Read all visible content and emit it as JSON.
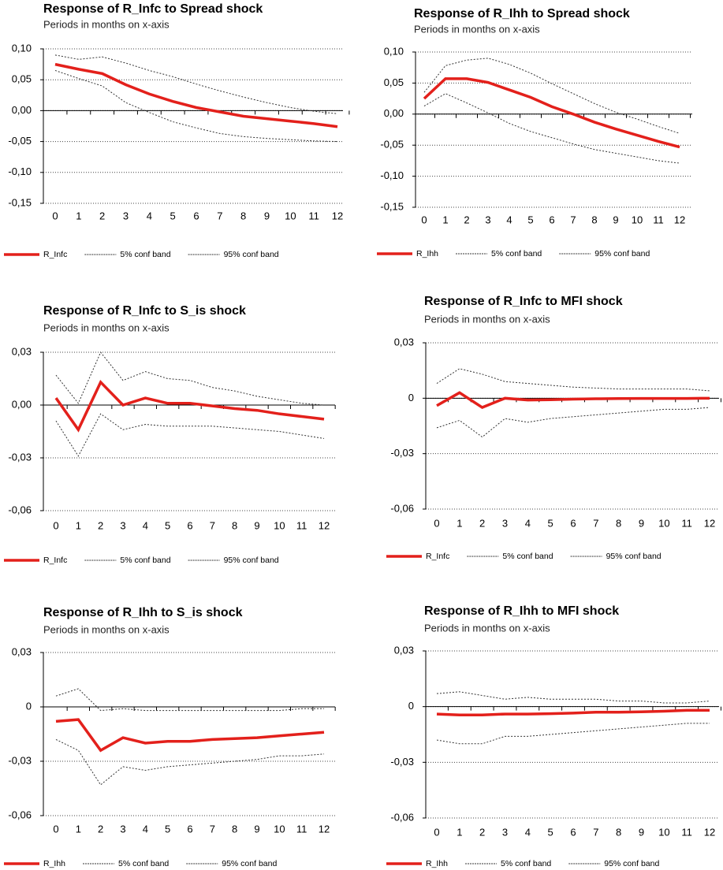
{
  "chart_data": [
    {
      "type": "line",
      "title": "Response of R_Infc to Spread shock",
      "subtitle": "Periods in months on x-axis",
      "x": [
        0,
        1,
        2,
        3,
        4,
        5,
        6,
        7,
        8,
        9,
        10,
        11,
        12
      ],
      "xlim": [
        0,
        12
      ],
      "xticks": [
        0,
        1,
        2,
        3,
        4,
        5,
        6,
        7,
        8,
        9,
        10,
        11,
        12
      ],
      "ylim": [
        -0.15,
        0.1
      ],
      "yticks": [
        {
          "value": -0.15,
          "label": "-0,15"
        },
        {
          "value": -0.1,
          "label": "-0,10"
        },
        {
          "value": -0.05,
          "label": "-0,05"
        },
        {
          "value": 0,
          "label": "0,00"
        },
        {
          "value": 0.05,
          "label": "0,05"
        },
        {
          "value": 0.1,
          "label": "0,10"
        }
      ],
      "grid": true,
      "legend": "bottom",
      "series": [
        {
          "name": "R_Infc",
          "color": "#e3201b",
          "line_style": "solid",
          "values": [
            0.075,
            0.067,
            0.06,
            0.042,
            0.027,
            0.015,
            0.005,
            -0.002,
            -0.009,
            -0.013,
            -0.017,
            -0.021,
            -0.026
          ]
        },
        {
          "name": "5% conf band",
          "color": "#333333",
          "line_style": "dotted",
          "values": [
            0.065,
            0.052,
            0.04,
            0.013,
            -0.003,
            -0.018,
            -0.028,
            -0.037,
            -0.042,
            -0.045,
            -0.047,
            -0.049,
            -0.05
          ]
        },
        {
          "name": "95% conf band",
          "color": "#333333",
          "line_style": "dotted",
          "values": [
            0.09,
            0.083,
            0.087,
            0.077,
            0.065,
            0.055,
            0.043,
            0.032,
            0.022,
            0.013,
            0.005,
            -0.001,
            -0.005
          ]
        }
      ]
    },
    {
      "type": "line",
      "title": "Response of R_Ihh to Spread shock",
      "subtitle": "Periods in months on x-axis",
      "x": [
        0,
        1,
        2,
        3,
        4,
        5,
        6,
        7,
        8,
        9,
        10,
        11,
        12
      ],
      "xlim": [
        0,
        12
      ],
      "xticks": [
        0,
        1,
        2,
        3,
        4,
        5,
        6,
        7,
        8,
        9,
        10,
        11,
        12
      ],
      "ylim": [
        -0.15,
        0.1
      ],
      "yticks": [
        {
          "value": -0.15,
          "label": "-0,15"
        },
        {
          "value": -0.1,
          "label": "-0,10"
        },
        {
          "value": -0.05,
          "label": "-0,05"
        },
        {
          "value": 0,
          "label": "0,00"
        },
        {
          "value": 0.05,
          "label": "0,05"
        },
        {
          "value": 0.1,
          "label": "0,10"
        }
      ],
      "grid": true,
      "legend": "bottom",
      "series": [
        {
          "name": "R_Ihh",
          "color": "#e3201b",
          "line_style": "solid",
          "values": [
            0.025,
            0.057,
            0.057,
            0.051,
            0.039,
            0.027,
            0.012,
            0,
            -0.013,
            -0.024,
            -0.034,
            -0.044,
            -0.053
          ]
        },
        {
          "name": "5% conf band",
          "color": "#333333",
          "line_style": "dotted",
          "values": [
            0.013,
            0.033,
            0.018,
            0.002,
            -0.015,
            -0.028,
            -0.038,
            -0.048,
            -0.057,
            -0.063,
            -0.069,
            -0.075,
            -0.079
          ]
        },
        {
          "name": "95% conf band",
          "color": "#333333",
          "line_style": "dotted",
          "values": [
            0.035,
            0.078,
            0.087,
            0.09,
            0.08,
            0.066,
            0.049,
            0.033,
            0.017,
            0.003,
            -0.008,
            -0.02,
            -0.031
          ]
        }
      ]
    },
    {
      "type": "line",
      "title": "Response of R_Infc to S_is shock",
      "subtitle": "Periods in months on x-axis",
      "x": [
        0,
        1,
        2,
        3,
        4,
        5,
        6,
        7,
        8,
        9,
        10,
        11,
        12
      ],
      "xlim": [
        0,
        12
      ],
      "xticks": [
        0,
        1,
        2,
        3,
        4,
        5,
        6,
        7,
        8,
        9,
        10,
        11,
        12
      ],
      "ylim": [
        -0.06,
        0.03
      ],
      "yticks": [
        {
          "value": -0.06,
          "label": "-0,06"
        },
        {
          "value": -0.03,
          "label": "-0,03"
        },
        {
          "value": 0,
          "label": "0,00"
        },
        {
          "value": 0.03,
          "label": "0,03"
        }
      ],
      "grid": true,
      "legend": "bottom",
      "series": [
        {
          "name": "R_Infc",
          "color": "#e3201b",
          "line_style": "solid",
          "values": [
            0.004,
            -0.014,
            0.013,
            0,
            0.004,
            0.001,
            0.001,
            -0.0005,
            -0.002,
            -0.003,
            -0.005,
            -0.0065,
            -0.008
          ]
        },
        {
          "name": "5% conf band",
          "color": "#333333",
          "line_style": "dotted",
          "values": [
            -0.009,
            -0.029,
            -0.005,
            -0.014,
            -0.011,
            -0.012,
            -0.012,
            -0.012,
            -0.013,
            -0.014,
            -0.015,
            -0.017,
            -0.019
          ]
        },
        {
          "name": "95% conf band",
          "color": "#333333",
          "line_style": "dotted",
          "values": [
            0.017,
            0.001,
            0.03,
            0.014,
            0.019,
            0.015,
            0.014,
            0.01,
            0.008,
            0.005,
            0.003,
            0.001,
            0
          ]
        }
      ]
    },
    {
      "type": "line",
      "title": "Response of R_Infc to MFI shock",
      "subtitle": "Periods in months on x-axis",
      "x": [
        0,
        1,
        2,
        3,
        4,
        5,
        6,
        7,
        8,
        9,
        10,
        11,
        12
      ],
      "xlim": [
        0,
        12
      ],
      "xticks": [
        0,
        1,
        2,
        3,
        4,
        5,
        6,
        7,
        8,
        9,
        10,
        11,
        12
      ],
      "ylim": [
        -0.06,
        0.03
      ],
      "yticks": [
        {
          "value": -0.06,
          "label": "-0,06"
        },
        {
          "value": -0.03,
          "label": "-0,03"
        },
        0,
        {
          "value": 0.03,
          "label": "0,03"
        }
      ],
      "grid": true,
      "legend": "bottom",
      "series": [
        {
          "name": "R_Infc",
          "color": "#e3201b",
          "line_style": "solid",
          "values": [
            -0.004,
            0.003,
            -0.005,
            0,
            -0.001,
            -0.0008,
            -0.0005,
            -0.0003,
            -0.0002,
            -0.0001,
            -0.0001,
            -0.0001,
            0
          ]
        },
        {
          "name": "5% conf band",
          "color": "#333333",
          "line_style": "dotted",
          "values": [
            -0.016,
            -0.012,
            -0.021,
            -0.011,
            -0.013,
            -0.011,
            -0.01,
            -0.009,
            -0.008,
            -0.007,
            -0.006,
            -0.006,
            -0.005
          ]
        },
        {
          "name": "95% conf band",
          "color": "#333333",
          "line_style": "dotted",
          "values": [
            0.008,
            0.016,
            0.013,
            0.009,
            0.008,
            0.007,
            0.006,
            0.0055,
            0.005,
            0.005,
            0.005,
            0.005,
            0.004
          ]
        }
      ]
    },
    {
      "type": "line",
      "title": "Response of R_Ihh to S_is shock",
      "subtitle": "Periods in months on x-axis",
      "x": [
        0,
        1,
        2,
        3,
        4,
        5,
        6,
        7,
        8,
        9,
        10,
        11,
        12
      ],
      "xlim": [
        0,
        12
      ],
      "xticks": [
        0,
        1,
        2,
        3,
        4,
        5,
        6,
        7,
        8,
        9,
        10,
        11,
        12
      ],
      "ylim": [
        -0.06,
        0.03
      ],
      "yticks": [
        {
          "value": -0.06,
          "label": "-0,06"
        },
        {
          "value": -0.03,
          "label": "-0,03"
        },
        0,
        {
          "value": 0.03,
          "label": "0,03"
        }
      ],
      "grid": true,
      "legend": "bottom",
      "series": [
        {
          "name": "R_Ihh",
          "color": "#e3201b",
          "line_style": "solid",
          "values": [
            -0.008,
            -0.007,
            -0.024,
            -0.017,
            -0.02,
            -0.019,
            -0.019,
            -0.018,
            -0.0175,
            -0.017,
            -0.016,
            -0.015,
            -0.014
          ]
        },
        {
          "name": "5% conf band",
          "color": "#333333",
          "line_style": "dotted",
          "values": [
            -0.018,
            -0.024,
            -0.043,
            -0.033,
            -0.035,
            -0.033,
            -0.032,
            -0.031,
            -0.03,
            -0.029,
            -0.027,
            -0.027,
            -0.026
          ]
        },
        {
          "name": "95% conf band",
          "color": "#333333",
          "line_style": "dotted",
          "values": [
            0.006,
            0.01,
            -0.002,
            -0.001,
            -0.002,
            -0.002,
            -0.002,
            -0.002,
            -0.002,
            -0.002,
            -0.002,
            -0.001,
            -0.001
          ]
        }
      ]
    },
    {
      "type": "line",
      "title": "Response of R_Ihh to MFI shock",
      "subtitle": "Periods in months on x-axis",
      "x": [
        0,
        1,
        2,
        3,
        4,
        5,
        6,
        7,
        8,
        9,
        10,
        11,
        12
      ],
      "xlim": [
        0,
        12
      ],
      "xticks": [
        0,
        1,
        2,
        3,
        4,
        5,
        6,
        7,
        8,
        9,
        10,
        11,
        12
      ],
      "ylim": [
        -0.06,
        0.03
      ],
      "yticks": [
        {
          "value": -0.06,
          "label": "-0,06"
        },
        {
          "value": -0.03,
          "label": "-0,03"
        },
        0,
        {
          "value": 0.03,
          "label": "0,03"
        }
      ],
      "grid": true,
      "legend": "bottom",
      "series": [
        {
          "name": "R_Ihh",
          "color": "#e3201b",
          "line_style": "solid",
          "values": [
            -0.004,
            -0.0045,
            -0.0045,
            -0.004,
            -0.004,
            -0.0038,
            -0.0035,
            -0.003,
            -0.003,
            -0.0028,
            -0.0025,
            -0.002,
            -0.002
          ]
        },
        {
          "name": "5% conf band",
          "color": "#333333",
          "line_style": "dotted",
          "values": [
            -0.018,
            -0.02,
            -0.02,
            -0.016,
            -0.016,
            -0.015,
            -0.014,
            -0.013,
            -0.012,
            -0.011,
            -0.01,
            -0.009,
            -0.009
          ]
        },
        {
          "name": "95% conf band",
          "color": "#333333",
          "line_style": "dotted",
          "values": [
            0.007,
            0.008,
            0.006,
            0.004,
            0.005,
            0.004,
            0.004,
            0.004,
            0.003,
            0.003,
            0.002,
            0.002,
            0.003
          ]
        }
      ]
    }
  ]
}
